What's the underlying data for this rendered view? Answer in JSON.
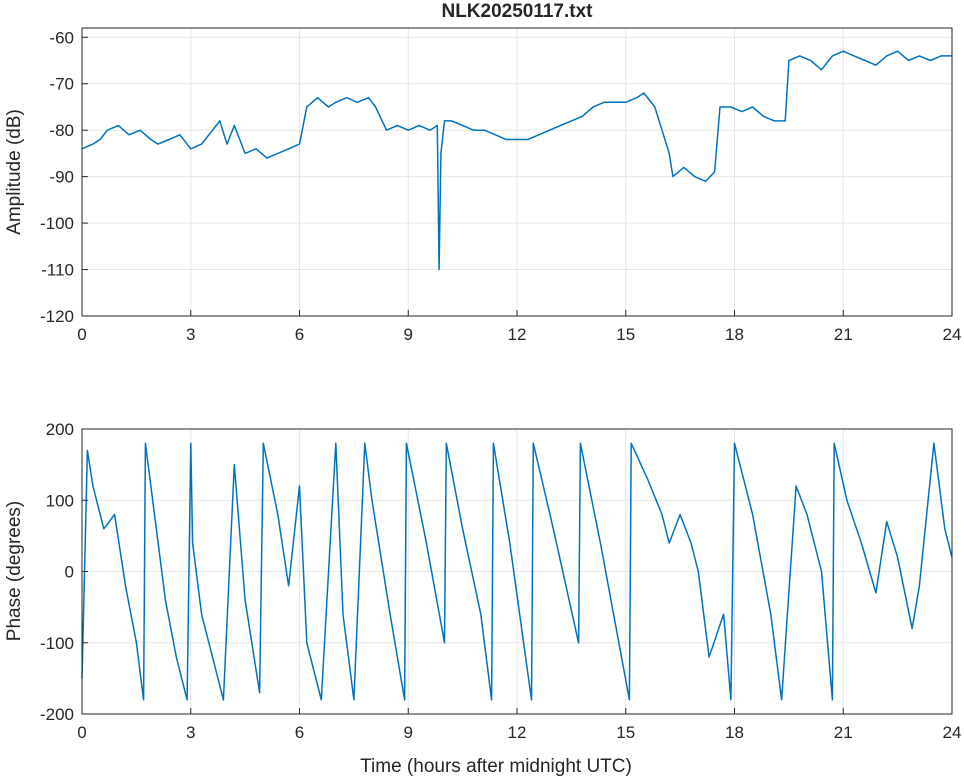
{
  "chart_data": [
    {
      "type": "line",
      "title": "NLK20250117.txt",
      "xlabel": "",
      "ylabel": "Amplitude (dB)",
      "xlim": [
        0,
        24
      ],
      "ylim": [
        -120,
        -58
      ],
      "x_ticks": [
        "0",
        "3",
        "6",
        "9",
        "12",
        "15",
        "18",
        "21",
        "24"
      ],
      "y_ticks": [
        "-60",
        "-70",
        "-80",
        "-90",
        "-100",
        "-110",
        "-120"
      ],
      "grid": true,
      "series_color": "#0072BD",
      "series": [
        {
          "x": [
            0,
            0.3,
            0.5,
            0.7,
            1.0,
            1.3,
            1.6,
            1.9,
            2.1,
            2.4,
            2.7,
            3.0,
            3.3,
            3.6,
            3.8,
            4.0,
            4.2,
            4.5,
            4.8,
            5.1,
            5.4,
            5.7,
            6.0,
            6.2,
            6.5,
            6.8,
            7.0,
            7.3,
            7.6,
            7.9,
            8.1,
            8.4,
            8.7,
            9.0,
            9.3,
            9.6,
            9.8,
            9.85,
            9.9,
            10.0,
            10.2,
            10.5,
            10.8,
            11.1,
            11.4,
            11.7,
            12.0,
            12.3,
            12.6,
            12.9,
            13.2,
            13.5,
            13.8,
            14.1,
            14.4,
            14.7,
            15.0,
            15.3,
            15.5,
            15.8,
            16.0,
            16.2,
            16.3,
            16.6,
            16.9,
            17.2,
            17.45,
            17.6,
            17.9,
            18.2,
            18.5,
            18.8,
            19.1,
            19.4,
            19.5,
            19.8,
            20.1,
            20.4,
            20.7,
            21.0,
            21.3,
            21.6,
            21.9,
            22.2,
            22.5,
            22.8,
            23.1,
            23.4,
            23.7,
            24.0
          ],
          "y": [
            -84,
            -83,
            -82,
            -80,
            -79,
            -81,
            -80,
            -82,
            -83,
            -82,
            -81,
            -84,
            -83,
            -80,
            -78,
            -83,
            -79,
            -85,
            -84,
            -86,
            -85,
            -84,
            -83,
            -75,
            -73,
            -75,
            -74,
            -73,
            -74,
            -73,
            -75,
            -80,
            -79,
            -80,
            -79,
            -80,
            -79,
            -110,
            -85,
            -78,
            -78,
            -79,
            -80,
            -80,
            -81,
            -82,
            -82,
            -82,
            -81,
            -80,
            -79,
            -78,
            -77,
            -75,
            -74,
            -74,
            -74,
            -73,
            -72,
            -75,
            -80,
            -85,
            -90,
            -88,
            -90,
            -91,
            -89,
            -75,
            -75,
            -76,
            -75,
            -77,
            -78,
            -78,
            -65,
            -64,
            -65,
            -67,
            -64,
            -63,
            -64,
            -65,
            -66,
            -64,
            -63,
            -65,
            -64,
            -65,
            -64,
            -64
          ]
        }
      ]
    },
    {
      "type": "line",
      "title": "",
      "xlabel": "Time (hours after midnight UTC)",
      "ylabel": "Phase (degrees)",
      "xlim": [
        0,
        24
      ],
      "ylim": [
        -200,
        200
      ],
      "x_ticks": [
        "0",
        "3",
        "6",
        "9",
        "12",
        "15",
        "18",
        "21",
        "24"
      ],
      "y_ticks": [
        "200",
        "100",
        "0",
        "-100",
        "-200"
      ],
      "grid": true,
      "series_color": "#0072BD",
      "series": [
        {
          "x": [
            0,
            0.15,
            0.3,
            0.6,
            0.9,
            1.2,
            1.5,
            1.7,
            1.75,
            2.0,
            2.3,
            2.6,
            2.9,
            3.0,
            3.05,
            3.3,
            3.6,
            3.9,
            4.2,
            4.5,
            4.9,
            5.0,
            5.4,
            5.7,
            6.0,
            6.2,
            6.6,
            7.0,
            7.2,
            7.5,
            7.8,
            8.0,
            8.5,
            8.9,
            8.95,
            9.5,
            10.0,
            10.05,
            10.5,
            11.0,
            11.3,
            11.35,
            11.8,
            12.4,
            12.45,
            13.0,
            13.7,
            13.75,
            14.3,
            15.1,
            15.15,
            15.6,
            16.0,
            16.2,
            16.5,
            16.8,
            17.0,
            17.3,
            17.7,
            17.9,
            18.0,
            18.5,
            19.0,
            19.3,
            19.7,
            20.0,
            20.4,
            20.7,
            20.75,
            21.1,
            21.5,
            21.9,
            22.2,
            22.5,
            22.9,
            23.1,
            23.5,
            23.8,
            24.0
          ],
          "y": [
            -150,
            170,
            120,
            60,
            80,
            -20,
            -100,
            -180,
            180,
            80,
            -40,
            -120,
            -180,
            180,
            40,
            -60,
            -120,
            -180,
            150,
            -40,
            -170,
            180,
            80,
            -20,
            120,
            -100,
            -180,
            180,
            -60,
            -180,
            180,
            100,
            -60,
            -180,
            180,
            40,
            -100,
            180,
            60,
            -60,
            -180,
            180,
            40,
            -180,
            180,
            60,
            -100,
            180,
            40,
            -180,
            180,
            130,
            80,
            40,
            80,
            40,
            0,
            -120,
            -60,
            -180,
            180,
            80,
            -60,
            -180,
            120,
            80,
            0,
            -180,
            180,
            100,
            40,
            -30,
            70,
            20,
            -80,
            -20,
            180,
            60,
            20
          ]
        }
      ]
    }
  ]
}
